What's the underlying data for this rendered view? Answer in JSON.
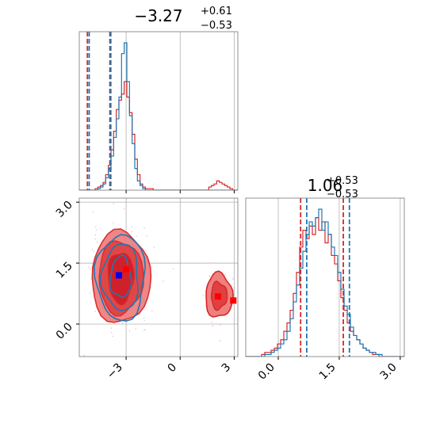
{
  "colors": {
    "red": "#d62728",
    "blue": "#1f77b4",
    "grid": "#b0b0b0",
    "red_fill": "#f08080",
    "red_mid": "#e04040"
  },
  "chart_data": {
    "type": "corner",
    "parameters": [
      "",
      ""
    ],
    "titles": [
      {
        "value": "−3.27",
        "plus": "+0.61",
        "minus": "−0.53"
      },
      {
        "value": "1.06",
        "plus": "+0.53",
        "minus": "−0.53"
      }
    ],
    "x_range": [
      -5.6,
      3.2
    ],
    "y_range": [
      -0.8,
      3.1
    ],
    "x_ticks": [
      {
        "value": -3,
        "label": "−3"
      },
      {
        "value": 0,
        "label": "0"
      },
      {
        "value": 3,
        "label": "3"
      }
    ],
    "y_ticks": [
      {
        "value": 0.0,
        "label": "0.0"
      },
      {
        "value": 1.5,
        "label": "1.5"
      },
      {
        "value": 3.0,
        "label": "3.0"
      }
    ],
    "diag2_ticks": [
      {
        "value": 0.0,
        "label": "0.0"
      },
      {
        "value": 1.5,
        "label": "1.5"
      },
      {
        "value": 3.0,
        "label": "3.0"
      }
    ],
    "quantiles_param1": {
      "red": [
        -5.15,
        -3.9
      ],
      "blue": [
        -5.05,
        -3.85
      ]
    },
    "quantiles_param2": {
      "red": [
        0.55,
        1.6
      ],
      "blue": [
        0.7,
        1.75
      ]
    },
    "markers": [
      {
        "x": -3.4,
        "y": 1.2,
        "color": "blue"
      },
      {
        "x": -3.0,
        "y": 1.35,
        "color": "red"
      },
      {
        "x": 2.1,
        "y": 0.68,
        "color": "red"
      },
      {
        "x": 2.95,
        "y": 0.58,
        "color": "red"
      }
    ],
    "hist1": {
      "bins": [
        -5.6,
        3.2,
        60
      ],
      "blue": [
        0,
        0,
        0,
        0,
        0,
        0,
        0,
        1,
        2,
        4,
        8,
        14,
        22,
        34,
        46,
        60,
        88,
        95,
        70,
        48,
        30,
        14,
        6,
        3,
        1,
        0,
        0,
        0,
        0,
        0,
        0,
        0,
        0,
        0,
        0,
        0,
        0,
        0,
        0,
        0,
        0,
        0,
        0,
        0,
        0,
        0,
        0,
        0,
        0,
        0,
        0,
        0,
        0,
        0,
        0,
        0,
        0,
        0,
        0,
        0
      ],
      "red": [
        0,
        0,
        0,
        0,
        0,
        0,
        1,
        2,
        3,
        5,
        10,
        16,
        26,
        38,
        52,
        58,
        62,
        70,
        60,
        50,
        36,
        20,
        10,
        4,
        2,
        1,
        1,
        1,
        0,
        0,
        0,
        0,
        0,
        0,
        0,
        0,
        0,
        0,
        0,
        0,
        0,
        0,
        0,
        0,
        0,
        0,
        0,
        0,
        0,
        2,
        3,
        4,
        6,
        5,
        4,
        3,
        2,
        1,
        0,
        0
      ]
    },
    "hist2": {
      "bins": [
        -0.8,
        3.1,
        50
      ],
      "blue": [
        0,
        0,
        0,
        0,
        0,
        0,
        1,
        1,
        2,
        3,
        4,
        6,
        8,
        12,
        18,
        26,
        34,
        42,
        50,
        58,
        64,
        62,
        66,
        70,
        60,
        64,
        58,
        52,
        48,
        40,
        32,
        24,
        20,
        14,
        10,
        8,
        6,
        4,
        3,
        2,
        2,
        1,
        1,
        0,
        0,
        0,
        0,
        0,
        0,
        0
      ],
      "red": [
        0,
        0,
        0,
        0,
        0,
        1,
        2,
        2,
        3,
        4,
        6,
        8,
        12,
        16,
        22,
        30,
        40,
        52,
        60,
        56,
        62,
        58,
        66,
        60,
        64,
        54,
        58,
        48,
        44,
        36,
        28,
        22,
        16,
        12,
        10,
        8,
        6,
        4,
        3,
        2,
        1,
        1,
        0,
        0,
        0,
        0,
        0,
        0,
        0,
        0
      ]
    }
  }
}
